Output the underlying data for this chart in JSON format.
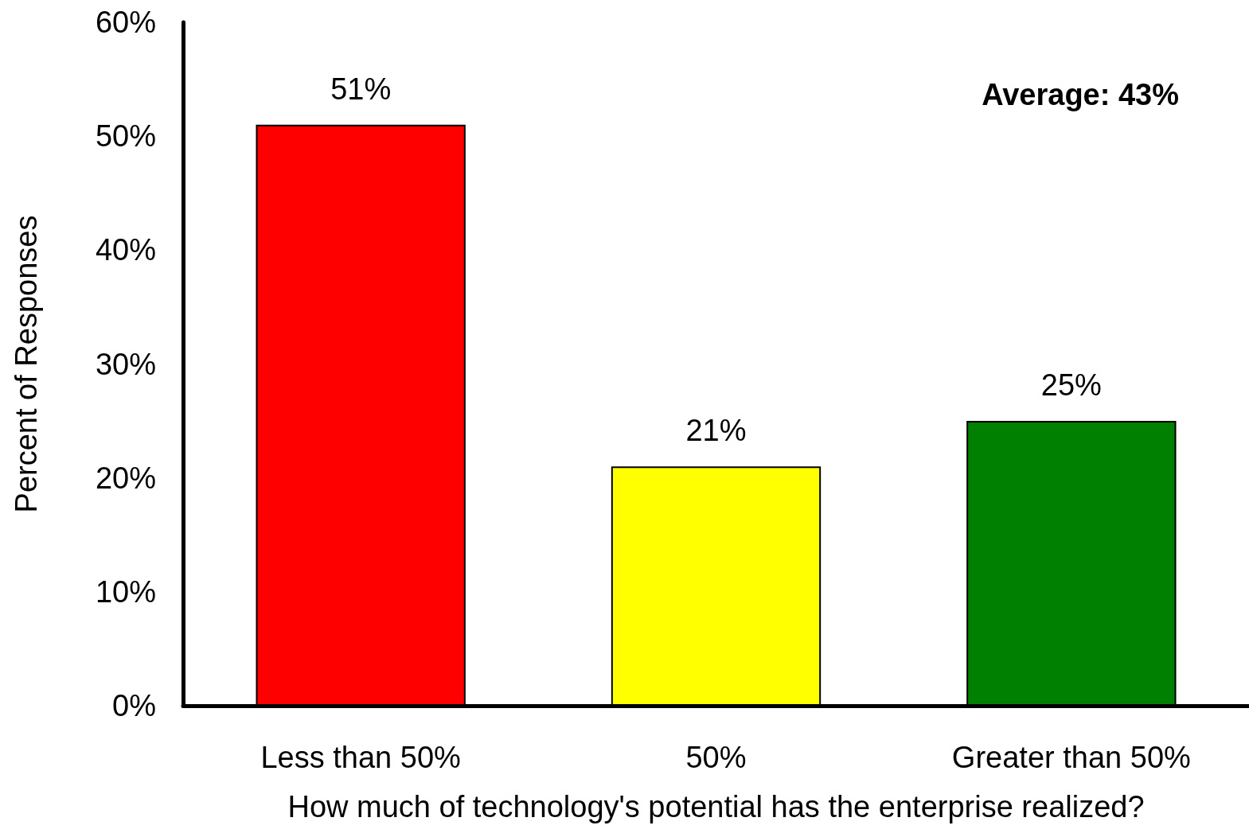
{
  "chart_data": {
    "type": "bar",
    "xlabel": "How much of technology's potential has the enterprise realized?",
    "ylabel": "Percent of Responses",
    "categories": [
      "Less than 50%",
      "50%",
      "Greater than 50%"
    ],
    "values": [
      51,
      21,
      25
    ],
    "colors": [
      "#ff0000",
      "#ffff00",
      "#008000"
    ],
    "value_labels": [
      "51%",
      "21%",
      "25%"
    ],
    "ylim": [
      0,
      60
    ],
    "yticks": [
      {
        "value": 0,
        "label": "0%"
      },
      {
        "value": 10,
        "label": "10%"
      },
      {
        "value": 20,
        "label": "20%"
      },
      {
        "value": 30,
        "label": "30%"
      },
      {
        "value": 40,
        "label": "40%"
      },
      {
        "value": 50,
        "label": "50%"
      },
      {
        "value": 60,
        "label": "60%"
      }
    ],
    "annotations": [
      "Average: 43%"
    ],
    "grid": false
  }
}
